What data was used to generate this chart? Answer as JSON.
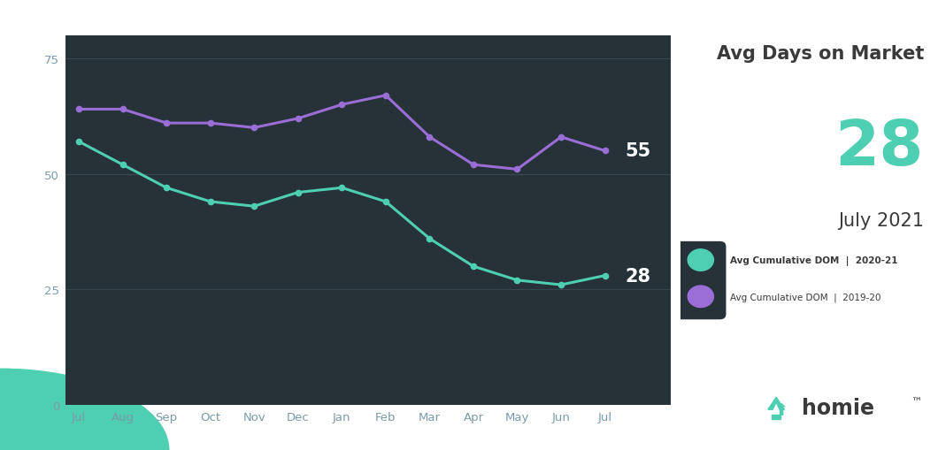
{
  "months": [
    "Jul",
    "Aug",
    "Sep",
    "Oct",
    "Nov",
    "Dec",
    "Jan",
    "Feb",
    "Mar",
    "Apr",
    "May",
    "Jun",
    "Jul"
  ],
  "series_2020_21": [
    57,
    52,
    47,
    44,
    43,
    46,
    47,
    44,
    36,
    30,
    27,
    26,
    28
  ],
  "series_2019_20": [
    64,
    64,
    61,
    61,
    60,
    62,
    65,
    67,
    58,
    52,
    51,
    58,
    55
  ],
  "color_2020_21": "#4ECFB2",
  "color_2019_20": "#9B6DD6",
  "panel_bg": "#263238",
  "grid_color": "#37474f",
  "tick_color": "#7a9aaa",
  "right_bg": "#ffffff",
  "title_text": "Avg Days on Market",
  "value_text": "28",
  "subtitle_text": "July 2021",
  "legend_label_1": "Avg Cumulative DOM  |  2020-21",
  "legend_label_2": "Avg Cumulative DOM  |  2019-20",
  "label_28": "28",
  "label_55": "55",
  "ylim": [
    0,
    80
  ],
  "yticks": [
    0,
    25,
    50,
    75
  ],
  "figsize": [
    10.6,
    5.1
  ],
  "dpi": 100,
  "teal_color": "#4ECFB2",
  "dark_text": "#3a3a3a",
  "icon_bg": "#263238",
  "label_color": "#ffffff"
}
